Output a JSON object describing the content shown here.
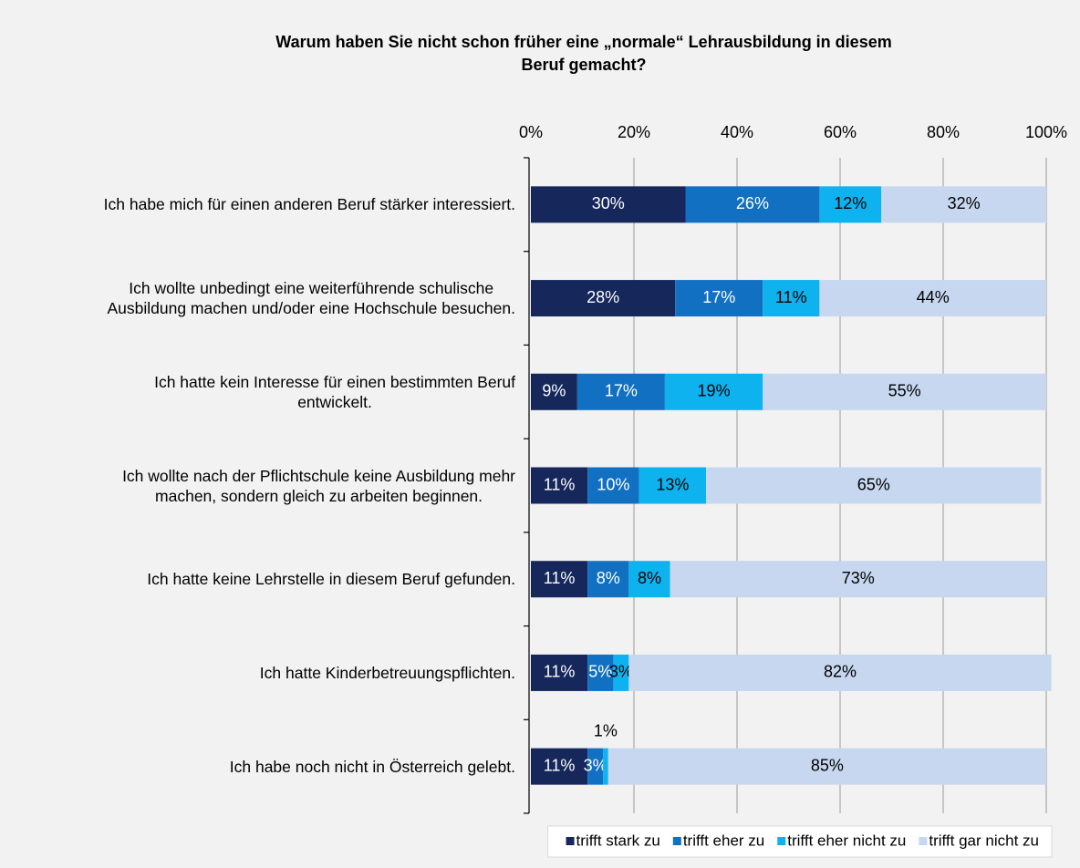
{
  "chart_data": {
    "type": "stacked_barh",
    "title": "Warum haben Sie nicht schon früher eine „normale“ Lehrausbildung in diesem\nBeruf gemacht?",
    "categories": [
      "Ich habe mich für einen anderen Beruf stärker interessiert.",
      "Ich wollte unbedingt eine weiterführende schulische\nAusbildung machen und/oder eine Hochschule besuchen.",
      "Ich hatte kein Interesse für einen bestimmten Beruf\nentwickelt.",
      "Ich wollte nach der Pflichtschule keine Ausbildung mehr\nmachen, sondern gleich zu arbeiten beginnen.",
      "Ich hatte keine Lehrstelle in diesem Beruf gefunden.",
      "Ich hatte Kinderbetreuungspflichten.",
      "Ich habe noch nicht in Österreich gelebt."
    ],
    "series": [
      {
        "name": "trifft stark zu",
        "color": "#15275b",
        "label_color": "#ffffff",
        "values": [
          30,
          28,
          9,
          11,
          11,
          11,
          11
        ],
        "value_labels": [
          "30%",
          "28%",
          "9%",
          "11%",
          "11%",
          "11%",
          "11%"
        ]
      },
      {
        "name": "trifft eher zu",
        "color": "#1170c2",
        "label_color": "#ffffff",
        "values": [
          26,
          17,
          17,
          10,
          8,
          5,
          3
        ],
        "value_labels": [
          "26%",
          "17%",
          "17%",
          "10%",
          "8%",
          "5%",
          "3%"
        ]
      },
      {
        "name": "trifft eher nicht zu",
        "color": "#0db2ee",
        "label_color": "#000000",
        "values": [
          12,
          11,
          19,
          13,
          8,
          3,
          1
        ],
        "value_labels": [
          "12%",
          "11%",
          "19%",
          "13%",
          "8%",
          "3%",
          "1%"
        ]
      },
      {
        "name": "trifft gar nicht zu",
        "color": "#c6d7ef",
        "label_color": "#000000",
        "values": [
          32,
          44,
          55,
          65,
          73,
          82,
          85
        ],
        "value_labels": [
          "32%",
          "44%",
          "55%",
          "65%",
          "73%",
          "82%",
          "85%"
        ]
      }
    ],
    "xlim": [
      0,
      100
    ],
    "xticks": [
      {
        "value": 0,
        "label": "0%"
      },
      {
        "value": 20,
        "label": "20%"
      },
      {
        "value": 40,
        "label": "40%"
      },
      {
        "value": 60,
        "label": "60%"
      },
      {
        "value": 80,
        "label": "80%"
      },
      {
        "value": 100,
        "label": "100%"
      }
    ],
    "grid": true,
    "legend": "bottom-right"
  }
}
